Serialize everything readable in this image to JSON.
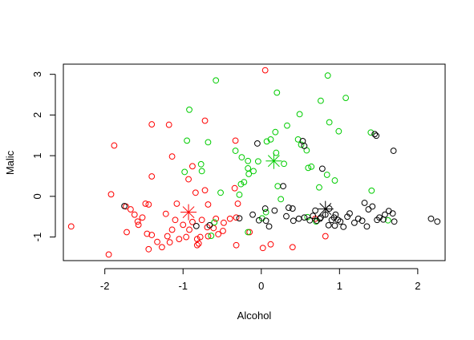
{
  "chart_data": {
    "type": "scatter",
    "xlabel": "Alcohol",
    "ylabel": "Malic",
    "xlim": [
      -2.53,
      2.35
    ],
    "ylim": [
      -1.58,
      3.25
    ],
    "x_ticks": [
      -2,
      -1,
      0,
      1,
      2
    ],
    "y_ticks": [
      -1,
      0,
      1,
      2,
      3
    ],
    "x_tick_labels": [
      "-2",
      "-1",
      "0",
      "1",
      "2"
    ],
    "y_tick_labels": [
      "-1",
      "0",
      "1",
      "2",
      "3"
    ],
    "grid": false,
    "legend": "none",
    "series": [
      {
        "color": "#ff0000",
        "marker": "circle-open",
        "points": [
          [
            0.05,
            3.1
          ],
          [
            -0.72,
            1.86
          ],
          [
            -1.4,
            1.77
          ],
          [
            -1.18,
            1.76
          ],
          [
            -1.88,
            1.25
          ],
          [
            -0.33,
            1.37
          ],
          [
            -0.88,
            0.74
          ],
          [
            -1.14,
            0.98
          ],
          [
            -1.4,
            0.49
          ],
          [
            -0.93,
            0.42
          ],
          [
            -0.72,
            0.15
          ],
          [
            -0.84,
            0.09
          ],
          [
            -0.34,
            0.2
          ],
          [
            -0.3,
            -0.18
          ],
          [
            -1.92,
            0.05
          ],
          [
            -1.73,
            -0.25
          ],
          [
            -1.67,
            -0.32
          ],
          [
            -1.62,
            -0.45
          ],
          [
            -1.48,
            -0.18
          ],
          [
            -1.44,
            -0.2
          ],
          [
            -1.08,
            -0.18
          ],
          [
            -0.68,
            -0.2
          ],
          [
            -0.58,
            -0.55
          ],
          [
            -0.48,
            -0.65
          ],
          [
            -2.43,
            -0.74
          ],
          [
            -1.72,
            -0.88
          ],
          [
            -1.57,
            -0.7
          ],
          [
            -1.46,
            -0.92
          ],
          [
            -1.4,
            -0.95
          ],
          [
            -1.33,
            -1.12
          ],
          [
            -1.27,
            -1.25
          ],
          [
            -1.2,
            -0.98
          ],
          [
            -1.14,
            -0.82
          ],
          [
            -1.1,
            -0.58
          ],
          [
            -1.0,
            -0.7
          ],
          [
            -0.96,
            -1.0
          ],
          [
            -0.92,
            -0.82
          ],
          [
            -0.88,
            -0.63
          ],
          [
            -0.82,
            -1.05
          ],
          [
            -0.8,
            -1.16
          ],
          [
            -0.76,
            -0.58
          ],
          [
            -0.69,
            -0.76
          ],
          [
            -0.61,
            -0.78
          ],
          [
            -0.49,
            -0.85
          ],
          [
            -0.4,
            -0.55
          ],
          [
            -0.32,
            -1.2
          ],
          [
            -0.15,
            -0.88
          ],
          [
            0.02,
            -1.27
          ],
          [
            0.12,
            -1.18
          ],
          [
            0.4,
            -1.25
          ],
          [
            0.69,
            -0.55
          ],
          [
            0.82,
            -0.98
          ],
          [
            -1.95,
            -1.43
          ],
          [
            -1.44,
            -1.3
          ],
          [
            -1.17,
            -1.13
          ],
          [
            -1.05,
            -1.05
          ],
          [
            -0.82,
            -1.2
          ],
          [
            -0.78,
            -1.0
          ],
          [
            -1.52,
            -0.52
          ],
          [
            -1.22,
            -0.43
          ],
          [
            -0.55,
            -0.93
          ],
          [
            -0.68,
            -0.98
          ],
          [
            -0.32,
            -0.52
          ],
          [
            -1.58,
            -0.62
          ]
        ],
        "centroid": [
          -0.93,
          -0.39
        ]
      },
      {
        "color": "#00cc00",
        "marker": "circle-open",
        "points": [
          [
            -0.58,
            2.85
          ],
          [
            0.85,
            2.97
          ],
          [
            -0.92,
            2.13
          ],
          [
            0.2,
            2.55
          ],
          [
            1.08,
            2.42
          ],
          [
            0.76,
            2.35
          ],
          [
            0.49,
            2.02
          ],
          [
            0.87,
            1.82
          ],
          [
            0.18,
            1.58
          ],
          [
            0.33,
            1.74
          ],
          [
            0.99,
            1.6
          ],
          [
            1.4,
            1.57
          ],
          [
            -0.95,
            1.37
          ],
          [
            -0.68,
            1.33
          ],
          [
            -0.33,
            1.12
          ],
          [
            -0.25,
            0.96
          ],
          [
            -0.17,
            0.87
          ],
          [
            0.07,
            1.35
          ],
          [
            0.12,
            1.4
          ],
          [
            0.19,
            1.07
          ],
          [
            0.47,
            1.4
          ],
          [
            0.51,
            1.27
          ],
          [
            0.58,
            1.13
          ],
          [
            -0.77,
            0.79
          ],
          [
            -0.76,
            0.62
          ],
          [
            -0.98,
            0.6
          ],
          [
            -0.17,
            0.69
          ],
          [
            -0.1,
            0.62
          ],
          [
            -0.16,
            0.55
          ],
          [
            -0.04,
            0.86
          ],
          [
            -0.26,
            0.3
          ],
          [
            -0.28,
            0.04
          ],
          [
            -0.52,
            0.09
          ],
          [
            0.29,
            0.8
          ],
          [
            0.6,
            0.7
          ],
          [
            0.64,
            0.73
          ],
          [
            0.74,
            0.22
          ],
          [
            0.84,
            0.53
          ],
          [
            0.94,
            0.39
          ],
          [
            1.41,
            0.14
          ],
          [
            0.06,
            -0.39
          ],
          [
            0.21,
            0.25
          ],
          [
            0.59,
            -0.51
          ],
          [
            0.25,
            -0.07
          ],
          [
            -0.64,
            -0.97
          ],
          [
            -0.17,
            -0.88
          ],
          [
            1.62,
            -0.59
          ],
          [
            0.01,
            -0.54
          ],
          [
            -0.22,
            0.35
          ],
          [
            0.7,
            -0.62
          ],
          [
            -0.6,
            -0.64
          ]
        ],
        "centroid": [
          0.16,
          0.87
        ]
      },
      {
        "color": "#000000",
        "marker": "circle-open",
        "points": [
          [
            -0.05,
            1.3
          ],
          [
            0.53,
            1.36
          ],
          [
            0.55,
            1.24
          ],
          [
            1.45,
            1.53
          ],
          [
            1.47,
            1.49
          ],
          [
            1.69,
            1.12
          ],
          [
            0.78,
            0.68
          ],
          [
            0.28,
            0.25
          ],
          [
            -0.11,
            -0.45
          ],
          [
            -0.03,
            -0.59
          ],
          [
            0.05,
            -0.3
          ],
          [
            0.06,
            -0.6
          ],
          [
            0.1,
            -0.74
          ],
          [
            0.17,
            -0.35
          ],
          [
            0.32,
            -0.49
          ],
          [
            0.35,
            -0.28
          ],
          [
            0.41,
            -0.6
          ],
          [
            0.48,
            -0.55
          ],
          [
            0.55,
            -0.52
          ],
          [
            0.62,
            -0.59
          ],
          [
            0.66,
            -0.48
          ],
          [
            0.71,
            -0.6
          ],
          [
            0.76,
            -0.52
          ],
          [
            0.82,
            -0.45
          ],
          [
            0.86,
            -0.71
          ],
          [
            0.9,
            -0.58
          ],
          [
            0.93,
            -0.52
          ],
          [
            0.95,
            -0.45
          ],
          [
            0.98,
            -0.58
          ],
          [
            1.01,
            -0.62
          ],
          [
            1.05,
            -0.75
          ],
          [
            1.1,
            -0.5
          ],
          [
            1.13,
            -0.42
          ],
          [
            1.19,
            -0.65
          ],
          [
            1.24,
            -0.55
          ],
          [
            1.29,
            -0.6
          ],
          [
            1.32,
            -0.16
          ],
          [
            1.37,
            -0.32
          ],
          [
            1.42,
            -0.25
          ],
          [
            1.48,
            -0.58
          ],
          [
            1.51,
            -0.52
          ],
          [
            1.58,
            -0.45
          ],
          [
            1.63,
            -0.36
          ],
          [
            1.68,
            -0.42
          ],
          [
            1.7,
            -0.62
          ],
          [
            2.17,
            -0.55
          ],
          [
            2.25,
            -0.62
          ],
          [
            -0.28,
            -0.54
          ],
          [
            -1.75,
            -0.24
          ],
          [
            -0.83,
            -0.73
          ],
          [
            -0.66,
            -0.71
          ],
          [
            0.4,
            -0.3
          ],
          [
            0.94,
            -0.72
          ],
          [
            1.35,
            -0.74
          ],
          [
            0.87,
            -0.3
          ],
          [
            0.69,
            -0.35
          ],
          [
            1.56,
            -0.57
          ],
          [
            0.75,
            -0.55
          ]
        ],
        "centroid": [
          0.82,
          -0.31
        ]
      }
    ]
  }
}
